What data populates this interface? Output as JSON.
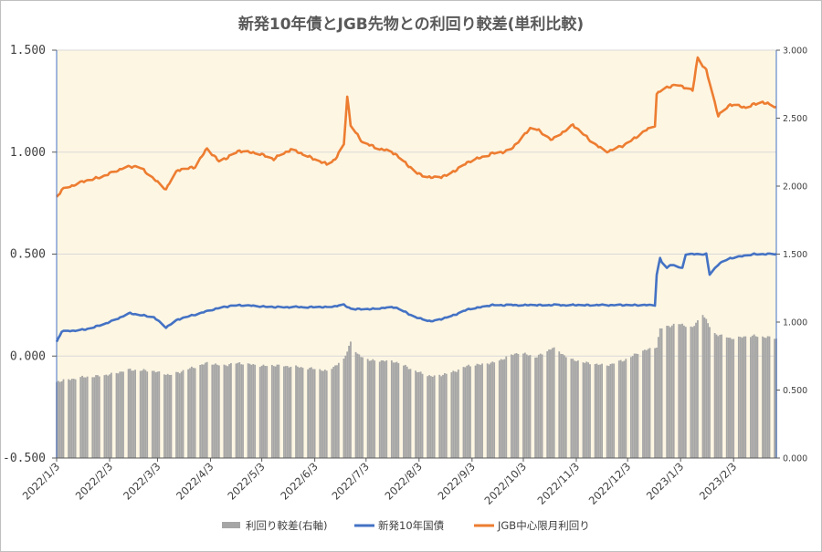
{
  "chart_data": {
    "type": "bar+line",
    "title": "新発10年債とJGB先物との利回り較差(単利比較)",
    "x_ticks": [
      "2022/1/3",
      "2022/2/3",
      "2022/3/3",
      "2022/4/3",
      "2022/5/3",
      "2022/6/3",
      "2022/7/3",
      "2022/8/3",
      "2022/9/3",
      "2022/10/3",
      "2022/11/3",
      "2022/12/3",
      "2023/1/3",
      "2023/2/3"
    ],
    "x_range": [
      "2022-01-03",
      "2023-02-28"
    ],
    "y_left": {
      "ticks": [
        "1.500",
        "1.000",
        "0.500",
        "0.000",
        "-0.500"
      ],
      "range": [
        -0.5,
        1.5
      ]
    },
    "y_right": {
      "ticks": [
        "3.000",
        "2.500",
        "2.000",
        "1.500",
        "1.000",
        "0.500",
        "0.000"
      ],
      "range": [
        0,
        3
      ]
    },
    "background_color": "#fdf6e3",
    "series": [
      {
        "name": "利回り較差(右軸)",
        "kind": "bar",
        "axis": "right",
        "color": "#a6a6a6",
        "points": [
          [
            "2022-01-03",
            0.56
          ],
          [
            "2022-01-15",
            0.59
          ],
          [
            "2022-02-01",
            0.61
          ],
          [
            "2022-02-15",
            0.65
          ],
          [
            "2022-03-01",
            0.64
          ],
          [
            "2022-03-10",
            0.61
          ],
          [
            "2022-03-20",
            0.65
          ],
          [
            "2022-04-01",
            0.7
          ],
          [
            "2022-04-10",
            0.68
          ],
          [
            "2022-04-20",
            0.7
          ],
          [
            "2022-05-01",
            0.68
          ],
          [
            "2022-05-15",
            0.68
          ],
          [
            "2022-06-01",
            0.66
          ],
          [
            "2022-06-10",
            0.64
          ],
          [
            "2022-06-20",
            0.72
          ],
          [
            "2022-06-24",
            0.86
          ],
          [
            "2022-06-28",
            0.76
          ],
          [
            "2022-07-05",
            0.72
          ],
          [
            "2022-07-20",
            0.71
          ],
          [
            "2022-08-01",
            0.64
          ],
          [
            "2022-08-10",
            0.6
          ],
          [
            "2022-08-20",
            0.62
          ],
          [
            "2022-09-01",
            0.68
          ],
          [
            "2022-09-15",
            0.7
          ],
          [
            "2022-10-01",
            0.78
          ],
          [
            "2022-10-10",
            0.74
          ],
          [
            "2022-10-20",
            0.81
          ],
          [
            "2022-11-01",
            0.72
          ],
          [
            "2022-11-10",
            0.7
          ],
          [
            "2022-11-20",
            0.68
          ],
          [
            "2022-12-01",
            0.72
          ],
          [
            "2022-12-10",
            0.78
          ],
          [
            "2022-12-20",
            0.82
          ],
          [
            "2022-12-22",
            0.95
          ],
          [
            "2023-01-01",
            0.99
          ],
          [
            "2023-01-10",
            0.96
          ],
          [
            "2023-01-16",
            1.06
          ],
          [
            "2023-01-22",
            0.92
          ],
          [
            "2023-02-01",
            0.88
          ],
          [
            "2023-02-15",
            0.9
          ],
          [
            "2023-02-28",
            0.88
          ]
        ]
      },
      {
        "name": "新発10年国債",
        "kind": "line",
        "axis": "left",
        "color": "#4472c4",
        "points": [
          [
            "2022-01-03",
            0.07
          ],
          [
            "2022-01-06",
            0.12
          ],
          [
            "2022-01-20",
            0.13
          ],
          [
            "2022-02-01",
            0.16
          ],
          [
            "2022-02-15",
            0.21
          ],
          [
            "2022-03-01",
            0.19
          ],
          [
            "2022-03-08",
            0.14
          ],
          [
            "2022-03-15",
            0.18
          ],
          [
            "2022-04-01",
            0.22
          ],
          [
            "2022-04-10",
            0.24
          ],
          [
            "2022-04-20",
            0.25
          ],
          [
            "2022-05-10",
            0.24
          ],
          [
            "2022-05-30",
            0.24
          ],
          [
            "2022-06-10",
            0.24
          ],
          [
            "2022-06-20",
            0.25
          ],
          [
            "2022-06-25",
            0.23
          ],
          [
            "2022-07-05",
            0.23
          ],
          [
            "2022-07-20",
            0.24
          ],
          [
            "2022-08-01",
            0.19
          ],
          [
            "2022-08-10",
            0.17
          ],
          [
            "2022-08-20",
            0.19
          ],
          [
            "2022-09-01",
            0.23
          ],
          [
            "2022-09-15",
            0.25
          ],
          [
            "2022-10-01",
            0.25
          ],
          [
            "2022-10-20",
            0.25
          ],
          [
            "2022-11-10",
            0.25
          ],
          [
            "2022-11-25",
            0.25
          ],
          [
            "2022-12-19",
            0.25
          ],
          [
            "2022-12-20",
            0.4
          ],
          [
            "2022-12-22",
            0.48
          ],
          [
            "2022-12-25",
            0.42
          ],
          [
            "2022-12-28",
            0.45
          ],
          [
            "2023-01-04",
            0.43
          ],
          [
            "2023-01-06",
            0.5
          ],
          [
            "2023-01-18",
            0.5
          ],
          [
            "2023-01-20",
            0.4
          ],
          [
            "2023-01-25",
            0.45
          ],
          [
            "2023-02-01",
            0.48
          ],
          [
            "2023-02-15",
            0.5
          ],
          [
            "2023-02-28",
            0.5
          ]
        ]
      },
      {
        "name": "JGB中心限月利回り",
        "kind": "line",
        "axis": "right",
        "color": "#ed7d31",
        "points": [
          [
            "2022-01-03",
            1.92
          ],
          [
            "2022-01-06",
            1.97
          ],
          [
            "2022-01-15",
            2.02
          ],
          [
            "2022-02-01",
            2.08
          ],
          [
            "2022-02-10",
            2.13
          ],
          [
            "2022-02-20",
            2.15
          ],
          [
            "2022-03-01",
            2.05
          ],
          [
            "2022-03-08",
            1.98
          ],
          [
            "2022-03-15",
            2.12
          ],
          [
            "2022-03-25",
            2.14
          ],
          [
            "2022-04-01",
            2.28
          ],
          [
            "2022-04-08",
            2.18
          ],
          [
            "2022-04-20",
            2.26
          ],
          [
            "2022-05-01",
            2.24
          ],
          [
            "2022-05-10",
            2.2
          ],
          [
            "2022-05-20",
            2.27
          ],
          [
            "2022-05-30",
            2.22
          ],
          [
            "2022-06-10",
            2.16
          ],
          [
            "2022-06-15",
            2.2
          ],
          [
            "2022-06-20",
            2.3
          ],
          [
            "2022-06-22",
            2.66
          ],
          [
            "2022-06-24",
            2.45
          ],
          [
            "2022-07-01",
            2.32
          ],
          [
            "2022-07-10",
            2.28
          ],
          [
            "2022-07-20",
            2.24
          ],
          [
            "2022-08-01",
            2.1
          ],
          [
            "2022-08-10",
            2.06
          ],
          [
            "2022-08-20",
            2.08
          ],
          [
            "2022-09-01",
            2.18
          ],
          [
            "2022-09-15",
            2.24
          ],
          [
            "2022-09-25",
            2.26
          ],
          [
            "2022-10-01",
            2.34
          ],
          [
            "2022-10-08",
            2.44
          ],
          [
            "2022-10-20",
            2.34
          ],
          [
            "2022-11-01",
            2.45
          ],
          [
            "2022-11-10",
            2.35
          ],
          [
            "2022-11-20",
            2.25
          ],
          [
            "2022-12-01",
            2.3
          ],
          [
            "2022-12-10",
            2.38
          ],
          [
            "2022-12-19",
            2.45
          ],
          [
            "2022-12-20",
            2.68
          ],
          [
            "2022-12-25",
            2.72
          ],
          [
            "2023-01-01",
            2.75
          ],
          [
            "2023-01-10",
            2.7
          ],
          [
            "2023-01-13",
            2.95
          ],
          [
            "2023-01-18",
            2.85
          ],
          [
            "2023-01-25",
            2.52
          ],
          [
            "2023-02-01",
            2.6
          ],
          [
            "2023-02-10",
            2.58
          ],
          [
            "2023-02-20",
            2.62
          ],
          [
            "2023-02-28",
            2.58
          ]
        ]
      }
    ],
    "legend": {
      "position": "bottom"
    }
  }
}
